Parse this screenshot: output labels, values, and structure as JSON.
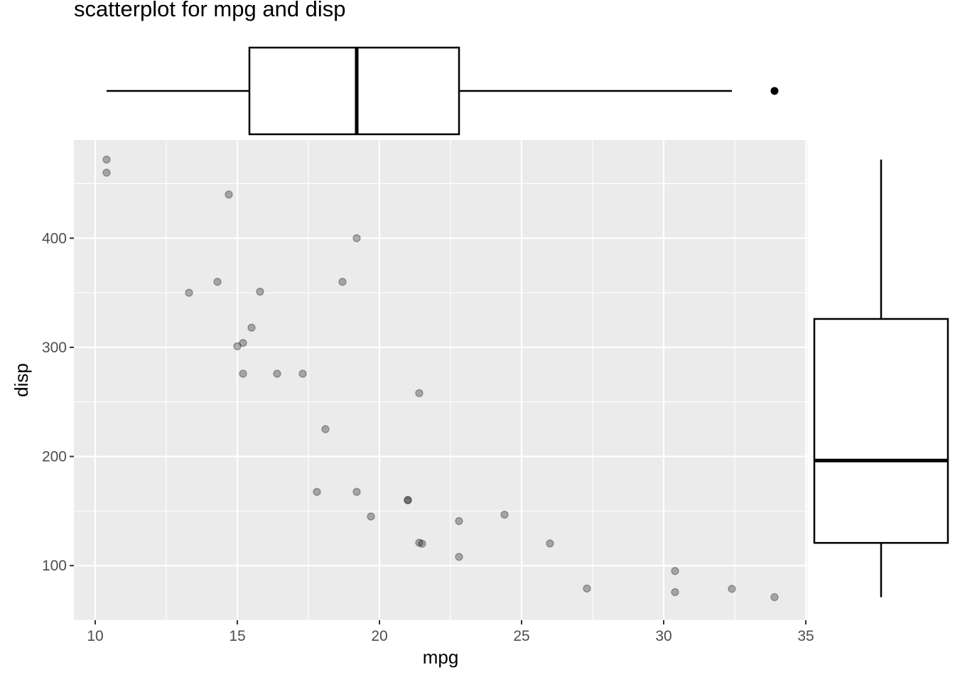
{
  "chart_data": {
    "type": "scatter",
    "title": "scatterplot for mpg and disp",
    "xlabel": "mpg",
    "ylabel": "disp",
    "xlim": [
      9.25,
      35.05
    ],
    "ylim": [
      50,
      490
    ],
    "x_ticks": [
      10,
      15,
      20,
      25,
      30,
      35
    ],
    "y_ticks": [
      100,
      200,
      300,
      400
    ],
    "grid": true,
    "point_alpha": 0.3,
    "points": [
      {
        "x": 21.0,
        "y": 160
      },
      {
        "x": 21.0,
        "y": 160
      },
      {
        "x": 22.8,
        "y": 108
      },
      {
        "x": 21.4,
        "y": 258
      },
      {
        "x": 18.7,
        "y": 360
      },
      {
        "x": 18.1,
        "y": 225
      },
      {
        "x": 14.3,
        "y": 360
      },
      {
        "x": 24.4,
        "y": 146.7
      },
      {
        "x": 22.8,
        "y": 140.8
      },
      {
        "x": 19.2,
        "y": 167.6
      },
      {
        "x": 17.8,
        "y": 167.6
      },
      {
        "x": 16.4,
        "y": 275.8
      },
      {
        "x": 17.3,
        "y": 275.8
      },
      {
        "x": 15.2,
        "y": 275.8
      },
      {
        "x": 10.4,
        "y": 472
      },
      {
        "x": 10.4,
        "y": 460
      },
      {
        "x": 14.7,
        "y": 440
      },
      {
        "x": 32.4,
        "y": 78.7
      },
      {
        "x": 30.4,
        "y": 75.7
      },
      {
        "x": 33.9,
        "y": 71.1
      },
      {
        "x": 21.5,
        "y": 120.1
      },
      {
        "x": 15.5,
        "y": 318
      },
      {
        "x": 15.2,
        "y": 304
      },
      {
        "x": 13.3,
        "y": 350
      },
      {
        "x": 19.2,
        "y": 400
      },
      {
        "x": 27.3,
        "y": 79
      },
      {
        "x": 26.0,
        "y": 120.3
      },
      {
        "x": 30.4,
        "y": 95.1
      },
      {
        "x": 15.8,
        "y": 351
      },
      {
        "x": 19.7,
        "y": 145
      },
      {
        "x": 15.0,
        "y": 301
      },
      {
        "x": 21.4,
        "y": 121
      }
    ],
    "marginal_boxplots": {
      "mpg": {
        "min": 10.4,
        "q1": 15.425,
        "median": 19.2,
        "q3": 22.8,
        "max": 32.4,
        "outliers": [
          33.9
        ]
      },
      "disp": {
        "min": 71.1,
        "q1": 120.825,
        "median": 196.3,
        "q3": 326,
        "max": 472,
        "outliers": []
      }
    }
  }
}
